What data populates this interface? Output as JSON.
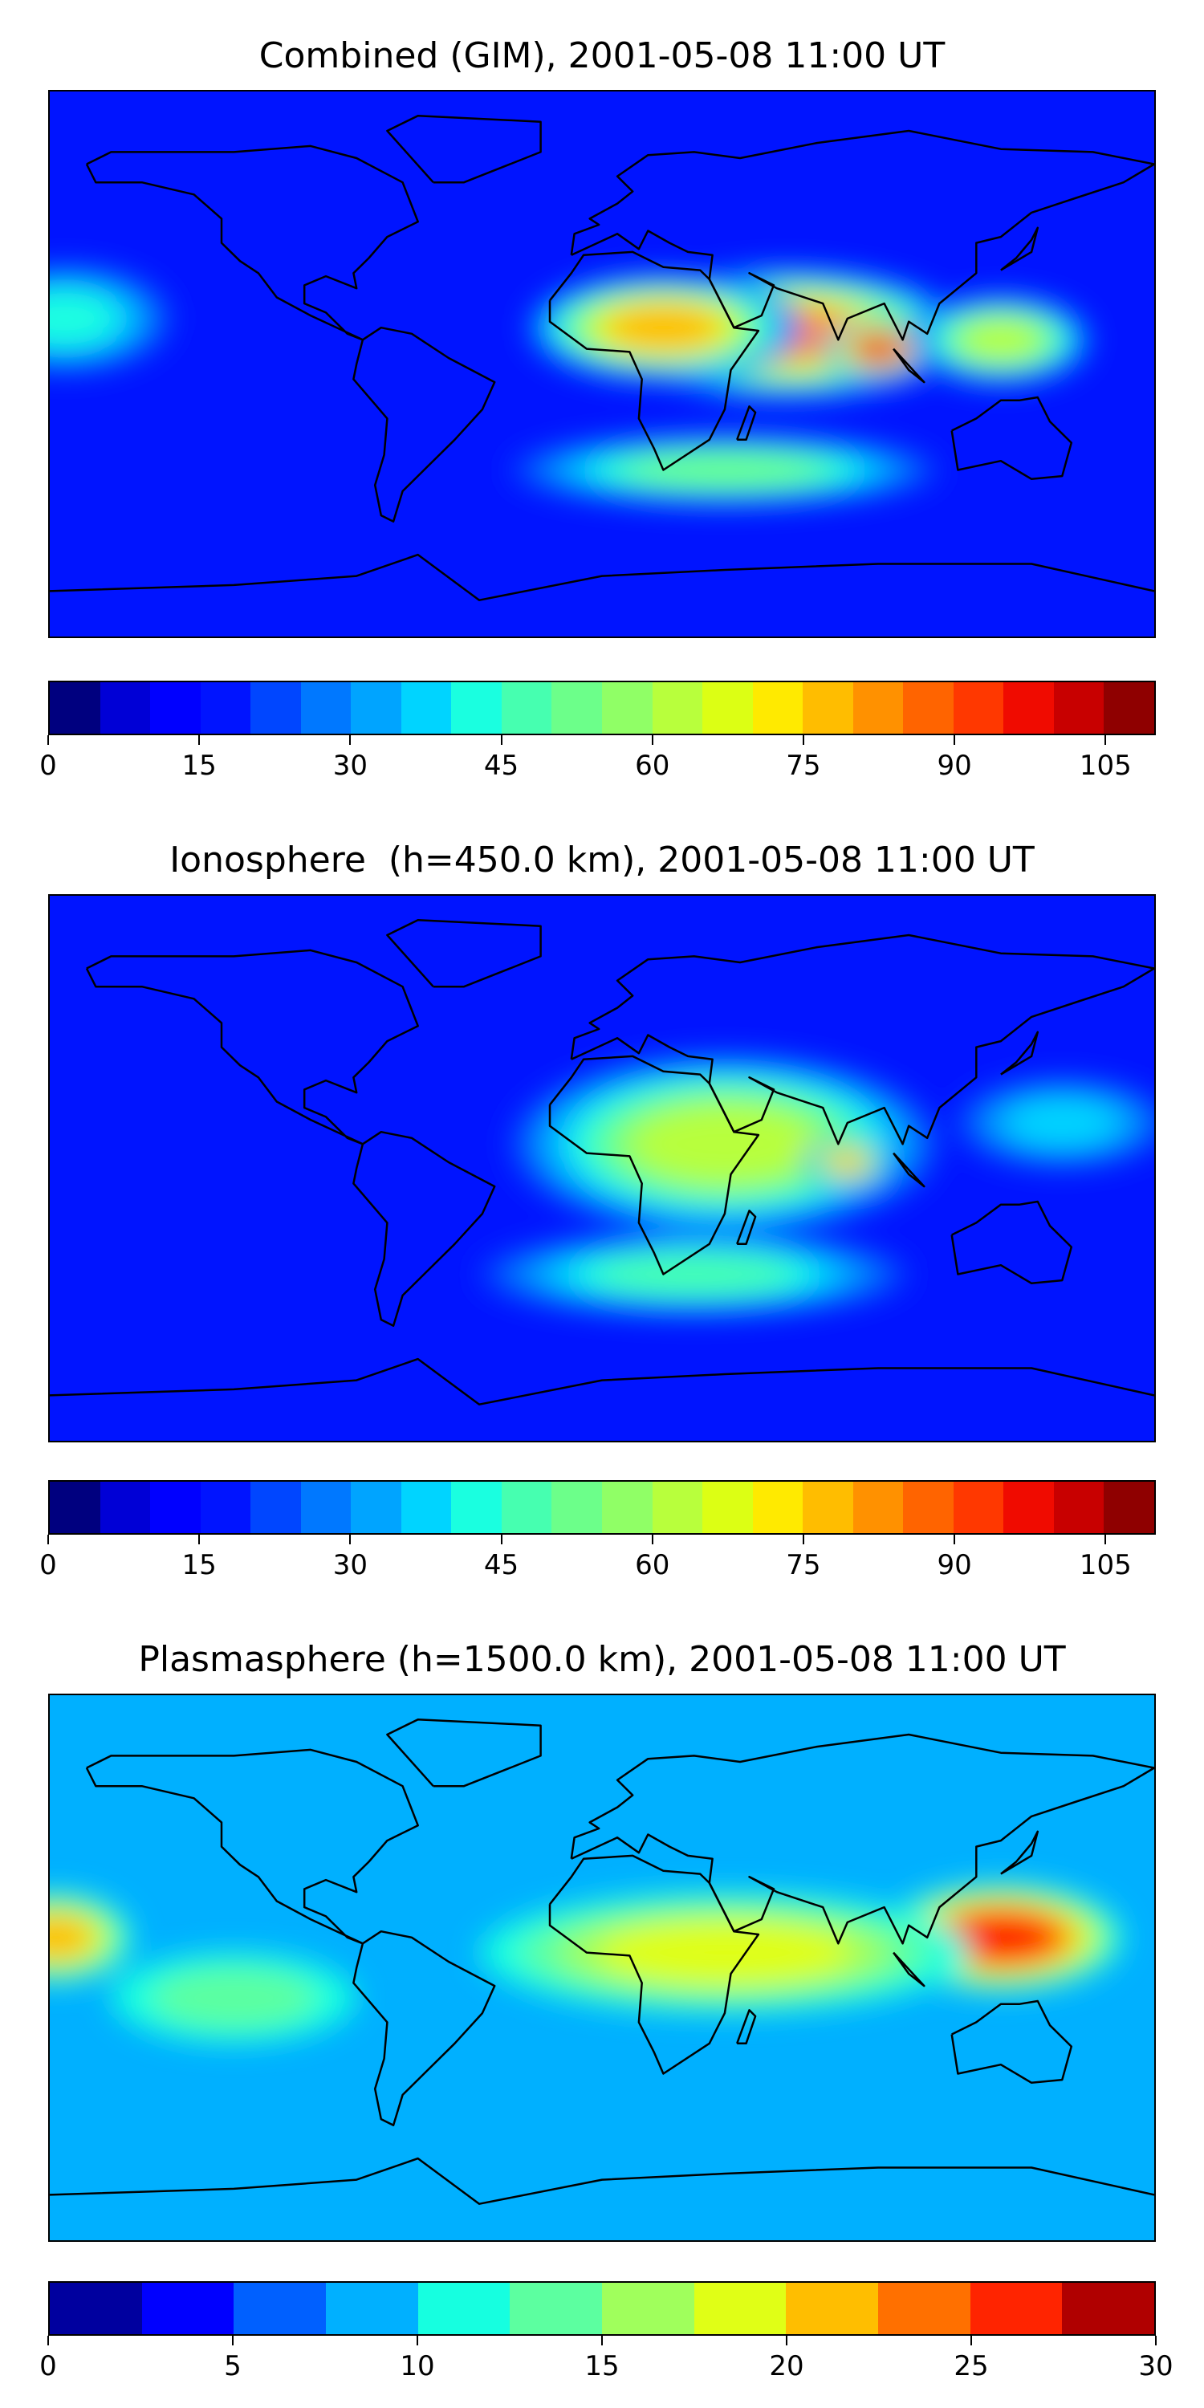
{
  "panels": [
    {
      "title": "Combined (GIM), 2001-05-08 11:00 UT",
      "colorbar_ticks": [
        "0",
        "15",
        "30",
        "45",
        "60",
        "75",
        "90",
        "105"
      ],
      "colorbar_values": [
        0,
        15,
        30,
        45,
        60,
        75,
        90,
        105
      ],
      "colorbar_range": [
        0,
        110
      ],
      "colorbar_levels": 22,
      "colors": [
        "#00007f",
        "#0000d6",
        "#0000ff",
        "#0014ff",
        "#0046ff",
        "#0078ff",
        "#00a4ff",
        "#00d4ff",
        "#1affe0",
        "#46ffb0",
        "#6cff8a",
        "#90ff66",
        "#b8ff3c",
        "#dcff14",
        "#ffea00",
        "#ffbd00",
        "#ff9100",
        "#ff6400",
        "#ff3800",
        "#f00b00",
        "#c80000",
        "#8f0000"
      ],
      "hotspots": [
        {
          "lon": 60,
          "lat": 10,
          "level": 16,
          "width": 60,
          "height": 22
        },
        {
          "lon": 90,
          "lat": 5,
          "level": 19,
          "width": 18,
          "height": 10
        },
        {
          "lon": 20,
          "lat": 12,
          "level": 15,
          "width": 45,
          "height": 18
        },
        {
          "lon": 130,
          "lat": 8,
          "level": 12,
          "width": 30,
          "height": 15
        },
        {
          "lon": -175,
          "lat": 15,
          "level": 8,
          "width": 35,
          "height": 18
        },
        {
          "lon": 40,
          "lat": -35,
          "level": 10,
          "width": 70,
          "height": 12
        }
      ]
    },
    {
      "title": "Ionosphere  (h=450.0 km), 2001-05-08 11:00 UT",
      "colorbar_ticks": [
        "0",
        "15",
        "30",
        "45",
        "60",
        "75",
        "90",
        "105"
      ],
      "colorbar_values": [
        0,
        15,
        30,
        45,
        60,
        75,
        90,
        105
      ],
      "colorbar_range": [
        0,
        110
      ],
      "colorbar_levels": 22,
      "colors": [
        "#00007f",
        "#0000d6",
        "#0000ff",
        "#0014ff",
        "#0046ff",
        "#0078ff",
        "#00a4ff",
        "#00d4ff",
        "#1affe0",
        "#46ffb0",
        "#6cff8a",
        "#90ff66",
        "#b8ff3c",
        "#dcff14",
        "#ffea00",
        "#ffbd00",
        "#ff9100",
        "#ff6400",
        "#ff3800",
        "#f00b00",
        "#c80000",
        "#8f0000"
      ],
      "hotspots": [
        {
          "lon": 40,
          "lat": 8,
          "level": 12,
          "width": 70,
          "height": 30
        },
        {
          "lon": 80,
          "lat": 2,
          "level": 15,
          "width": 14,
          "height": 8
        },
        {
          "lon": 30,
          "lat": -35,
          "level": 9,
          "width": 70,
          "height": 14
        },
        {
          "lon": 150,
          "lat": 15,
          "level": 7,
          "width": 35,
          "height": 15
        }
      ]
    },
    {
      "title": "Plasmasphere (h=1500.0 km), 2001-05-08 11:00 UT",
      "colorbar_ticks": [
        "0",
        "5",
        "10",
        "15",
        "20",
        "25",
        "30"
      ],
      "colorbar_values": [
        0,
        5,
        10,
        15,
        20,
        25,
        30
      ],
      "colorbar_range": [
        0,
        30
      ],
      "colorbar_levels": 12,
      "colors": [
        "#00009f",
        "#0000ff",
        "#0060ff",
        "#00b0ff",
        "#16ffe0",
        "#5cffa0",
        "#a0ff5c",
        "#e0ff16",
        "#ffbe00",
        "#ff7000",
        "#ff2400",
        "#b00000"
      ],
      "hotspots": [
        {
          "lon": 130,
          "lat": 10,
          "level": 10,
          "width": 40,
          "height": 18
        },
        {
          "lon": 40,
          "lat": 5,
          "level": 7,
          "width": 80,
          "height": 20
        },
        {
          "lon": -178,
          "lat": 10,
          "level": 8,
          "width": 25,
          "height": 15
        },
        {
          "lon": -120,
          "lat": -10,
          "level": 5,
          "width": 40,
          "height": 15
        },
        {
          "lon": 110,
          "lat": -40,
          "level": 3,
          "width": 60,
          "height": 10
        }
      ]
    }
  ]
}
